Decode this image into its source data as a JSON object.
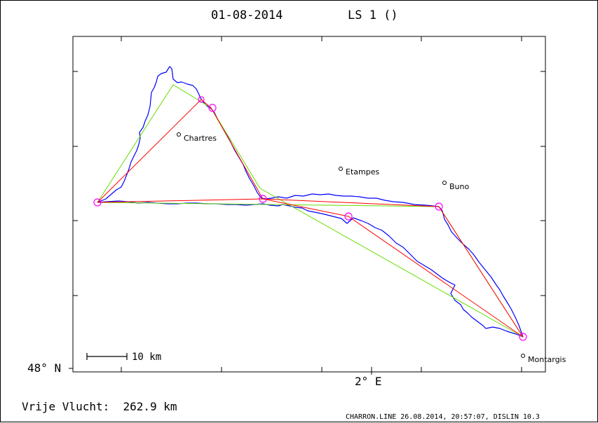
{
  "header": {
    "date": "01-08-2014",
    "task": "LS 1 ()"
  },
  "axes": {
    "lat_label": "48° N",
    "lon_label": "2° E"
  },
  "scale_bar": {
    "label": "10 km"
  },
  "towns": [
    {
      "name": "Chartres"
    },
    {
      "name": "Etampes"
    },
    {
      "name": "Buno"
    },
    {
      "name": "Montargis"
    }
  ],
  "footer": {
    "result": "Vrije Vlucht:  262.9 km",
    "credits": "CHARRON.LINE 26.08.2014, 20:57:07, DISLIN 10.3"
  },
  "colors": {
    "track": "#0000ff",
    "optimized_route": "#ff0000",
    "declared_route": "#66dd00",
    "turnpoint": "#ff00ff",
    "frame": "#000000"
  }
}
